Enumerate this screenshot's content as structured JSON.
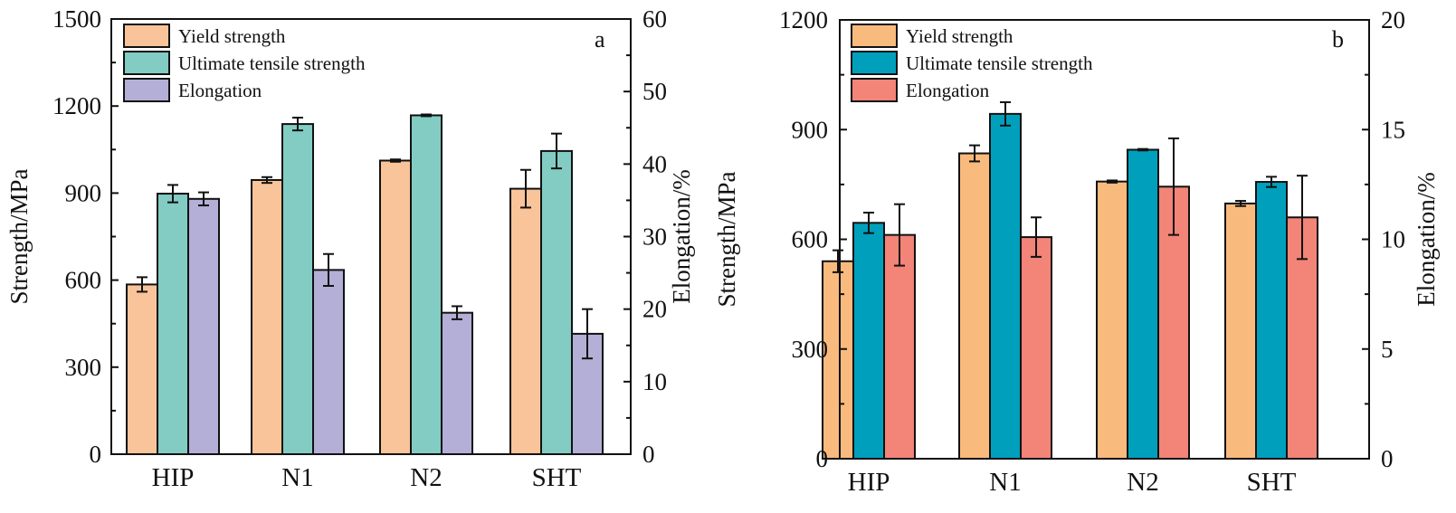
{
  "chart_data": [
    {
      "type": "bar",
      "panel_label": "a",
      "categories": [
        "HIP",
        "N1",
        "N2",
        "SHT"
      ],
      "ylabel": "Strength/MPa",
      "ylabel_right": "Elongation/%",
      "ylim": [
        0,
        1500
      ],
      "ylim_right": [
        0,
        60
      ],
      "yticks": [
        0,
        300,
        600,
        900,
        1200,
        1500
      ],
      "yticks_right": [
        0,
        10,
        20,
        30,
        40,
        50,
        60
      ],
      "legend_position": "top-left",
      "series": [
        {
          "name": "Yield strength",
          "axis": "left",
          "color": "#F9C499",
          "values": [
            585,
            945,
            1012,
            915
          ],
          "errors": [
            25,
            10,
            4,
            65
          ]
        },
        {
          "name": "Ultimate tensile strength",
          "axis": "left",
          "color": "#82CCC3",
          "values": [
            898,
            1138,
            1168,
            1045
          ],
          "errors": [
            30,
            22,
            3,
            60
          ]
        },
        {
          "name": "Elongation",
          "axis": "right",
          "color": "#B3AFD6",
          "values": [
            35.2,
            25.4,
            19.5,
            16.6
          ],
          "errors": [
            0.9,
            2.2,
            0.9,
            3.4
          ]
        }
      ]
    },
    {
      "type": "bar",
      "panel_label": "b",
      "categories": [
        "HIP",
        "N1",
        "N2",
        "SHT"
      ],
      "ylabel": "Strength/MPa",
      "ylabel_right": "Elongation/%",
      "ylim": [
        0,
        1200
      ],
      "ylim_right": [
        0,
        20
      ],
      "yticks": [
        0,
        300,
        600,
        900,
        1200
      ],
      "yticks_right": [
        0,
        5,
        10,
        15,
        20
      ],
      "legend_position": "top-left",
      "series": [
        {
          "name": "Yield strength",
          "axis": "left",
          "color": "#F9BA7D",
          "values": [
            540,
            835,
            758,
            698
          ],
          "errors": [
            30,
            22,
            3,
            7
          ]
        },
        {
          "name": "Ultimate tensile strength",
          "axis": "left",
          "color": "#00A0BC",
          "values": [
            645,
            943,
            845,
            757
          ],
          "errors": [
            28,
            32,
            2,
            14
          ]
        },
        {
          "name": "Elongation",
          "axis": "right",
          "color": "#F28478",
          "values": [
            10.2,
            10.1,
            12.4,
            11.0
          ],
          "errors": [
            1.4,
            0.9,
            2.2,
            1.9
          ]
        }
      ]
    }
  ]
}
